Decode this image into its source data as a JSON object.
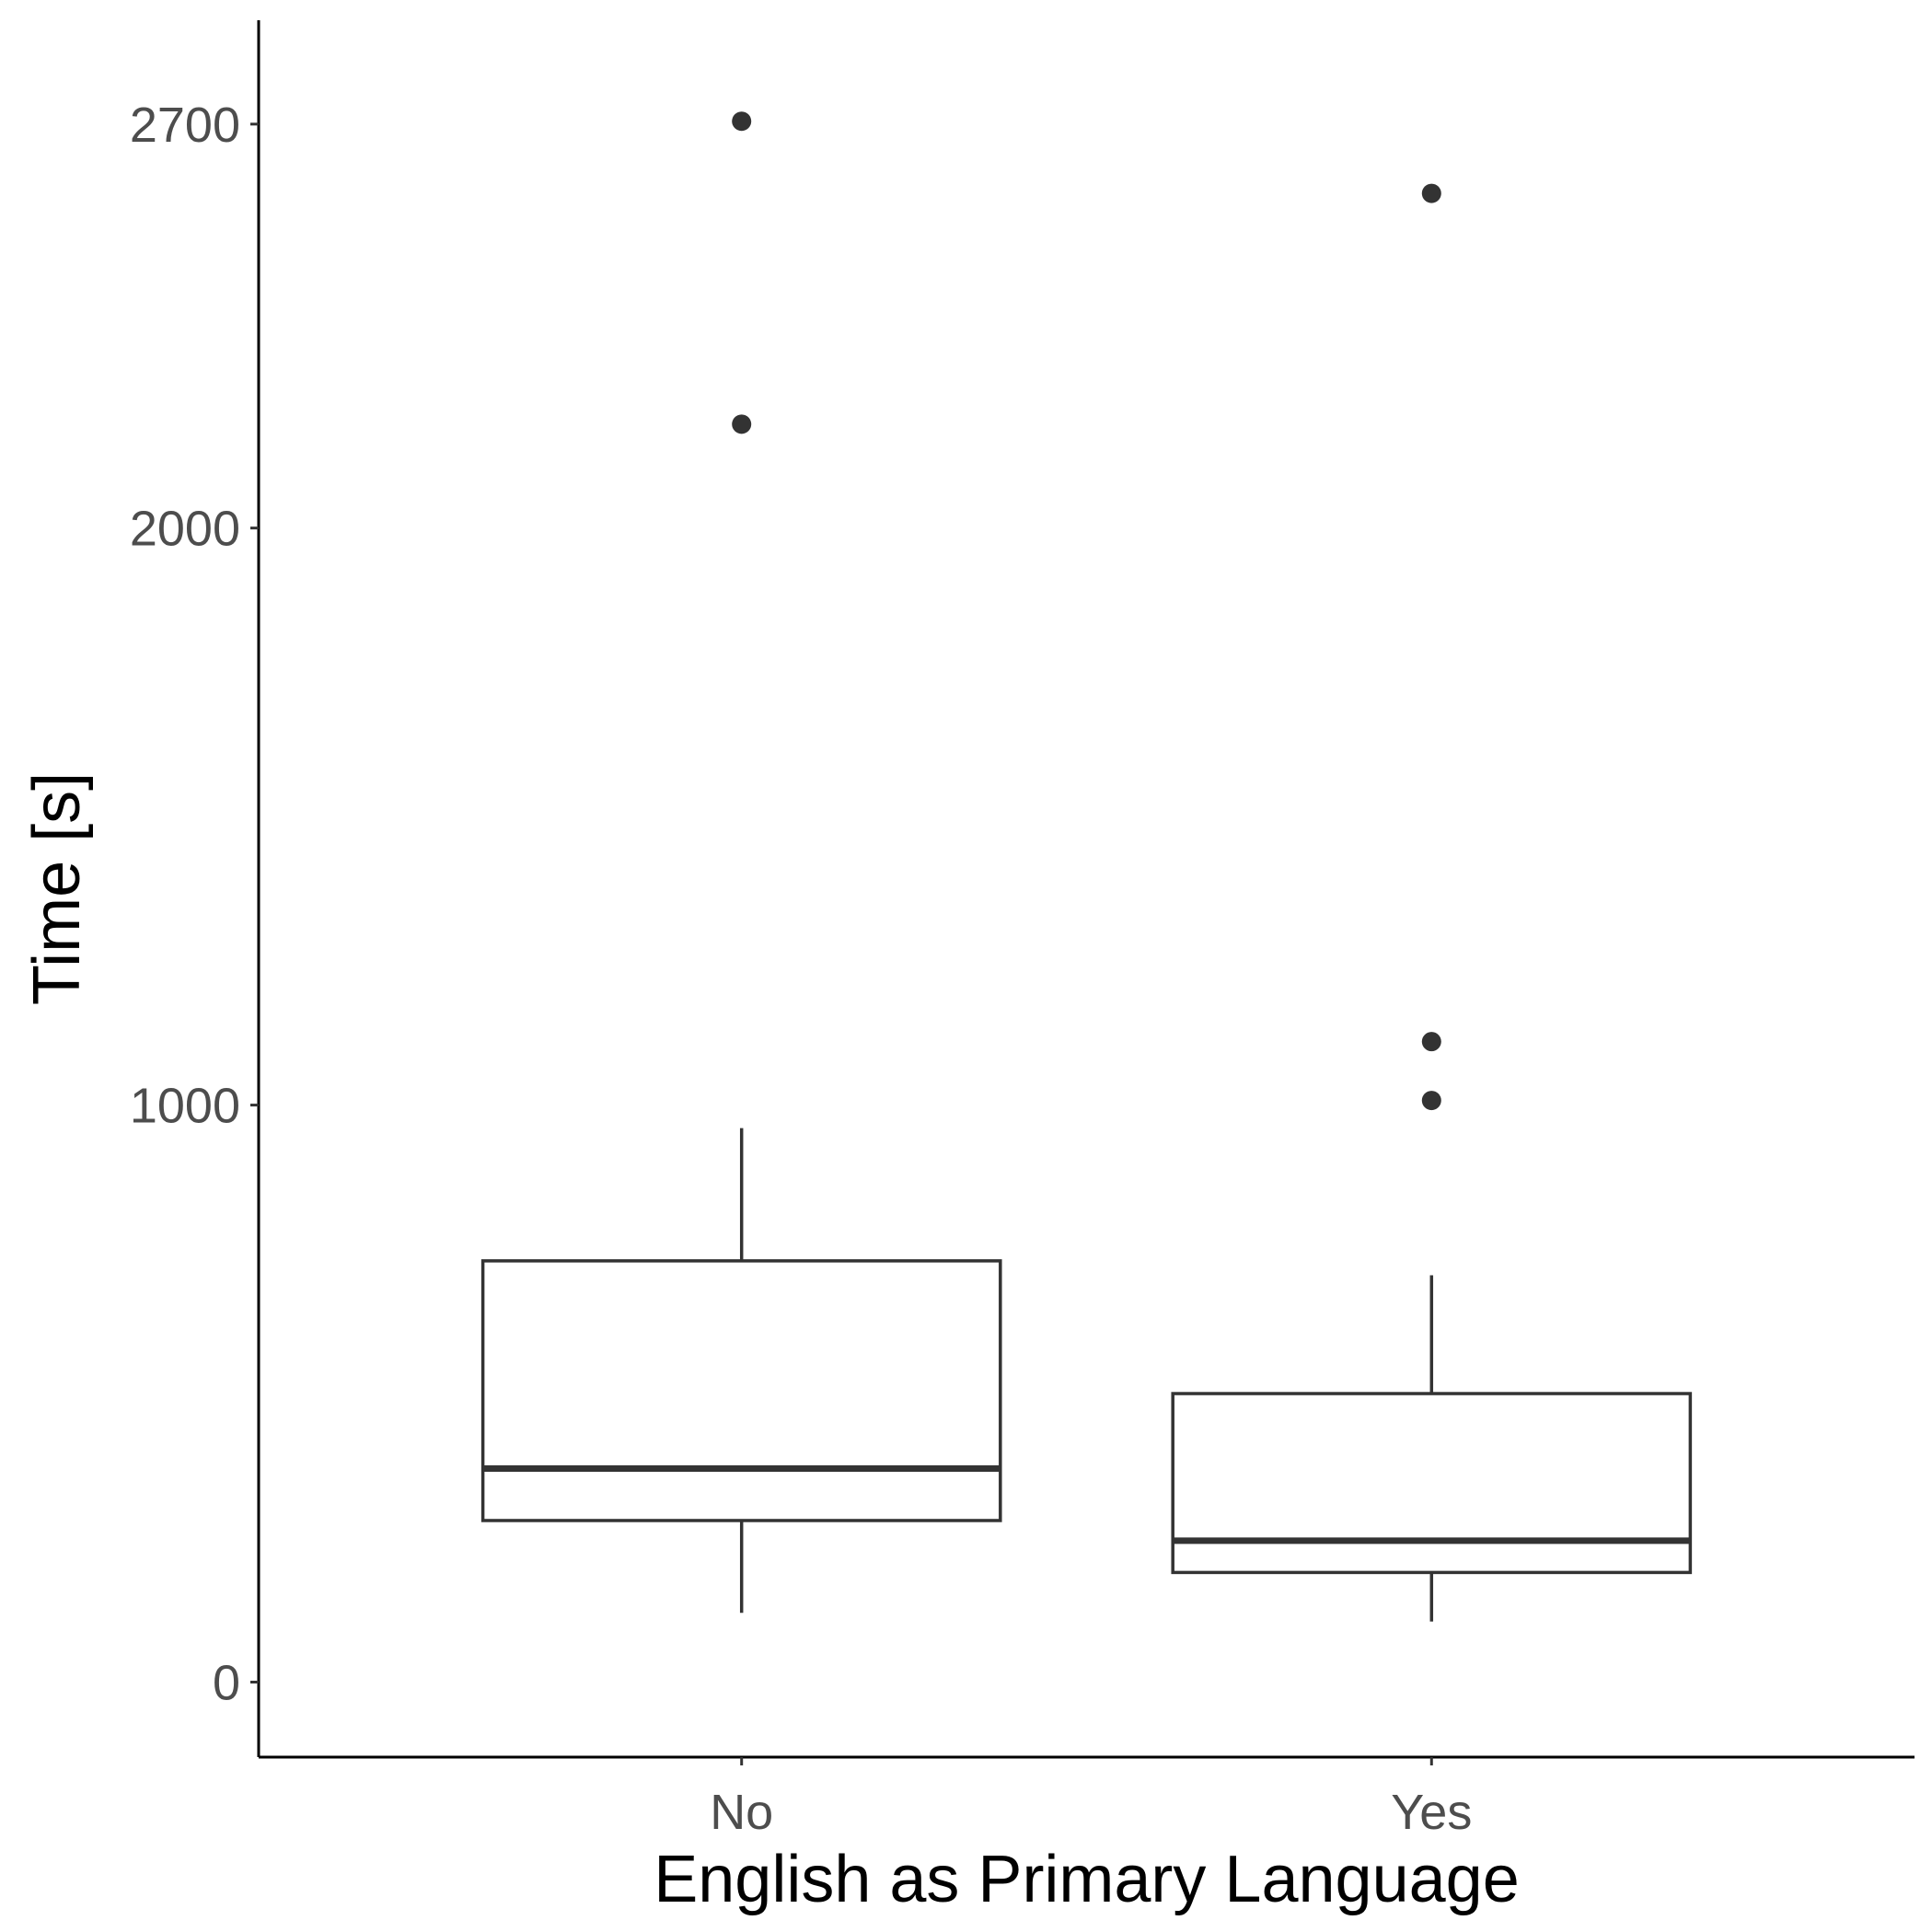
{
  "chart_data": {
    "type": "box",
    "xlabel": "English as Primary Language",
    "ylabel": "Time [s]",
    "ylim": [
      -130,
      2880
    ],
    "y_ticks": [
      0,
      1000,
      2000,
      2700
    ],
    "categories": [
      "No",
      "Yes"
    ],
    "boxes": [
      {
        "category": "No",
        "whisker_low": 120,
        "q1": 280,
        "median": 370,
        "q3": 730,
        "whisker_high": 960,
        "outliers": [
          2180,
          2705
        ]
      },
      {
        "category": "Yes",
        "whisker_low": 105,
        "q1": 190,
        "median": 245,
        "q3": 500,
        "whisker_high": 705,
        "outliers": [
          1008,
          1110,
          2580
        ]
      }
    ],
    "grid": false,
    "legend": "none"
  }
}
